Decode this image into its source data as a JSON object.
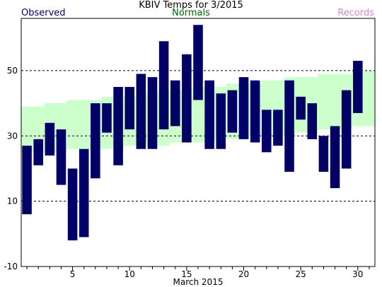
{
  "chart_data": {
    "type": "bar",
    "title": "KBIV Temps for 3/2015",
    "xlabel": "March 2015",
    "ylabel": "",
    "legend": {
      "observed": "Observed",
      "normals": "Normals",
      "records": "Records"
    },
    "xlim": [
      0.5,
      31.5
    ],
    "ylim": [
      -10,
      66
    ],
    "yticks": [
      -10,
      10,
      30,
      50
    ],
    "xticks": [
      5,
      10,
      15,
      20,
      25,
      30
    ],
    "grid": "horizontal dashed at y ticks",
    "colors": {
      "observed": "#000066",
      "normals": "#ccffcc",
      "records": "#cc88cc"
    },
    "days": [
      1,
      2,
      3,
      4,
      5,
      6,
      7,
      8,
      9,
      10,
      11,
      12,
      13,
      14,
      15,
      16,
      17,
      18,
      19,
      20,
      21,
      22,
      23,
      24,
      25,
      26,
      27,
      28,
      29,
      30,
      31
    ],
    "observed_high": [
      27,
      29,
      34,
      32,
      20,
      26,
      40,
      40,
      45,
      45,
      49,
      48,
      59,
      47,
      55,
      64,
      47,
      43,
      44,
      48,
      47,
      38,
      38,
      47,
      42,
      40,
      30,
      33,
      44,
      53,
      null
    ],
    "observed_low": [
      6,
      21,
      24,
      15,
      -2,
      -1,
      17,
      31,
      21,
      32,
      26,
      26,
      32,
      33,
      28,
      41,
      26,
      26,
      31,
      29,
      28,
      25,
      27,
      19,
      35,
      29,
      19,
      14,
      20,
      37,
      null
    ],
    "normal_high": [
      39,
      39,
      40,
      40,
      41,
      41,
      41,
      42,
      42,
      42,
      43,
      43,
      44,
      44,
      44,
      45,
      45,
      45,
      46,
      46,
      46,
      47,
      47,
      48,
      48,
      48,
      49,
      49,
      49,
      50,
      50
    ],
    "normal_low": [
      25,
      25,
      25,
      25,
      26,
      26,
      26,
      26,
      26,
      27,
      27,
      27,
      27,
      28,
      28,
      28,
      28,
      29,
      29,
      29,
      30,
      30,
      30,
      30,
      31,
      31,
      32,
      32,
      32,
      33,
      33
    ]
  }
}
